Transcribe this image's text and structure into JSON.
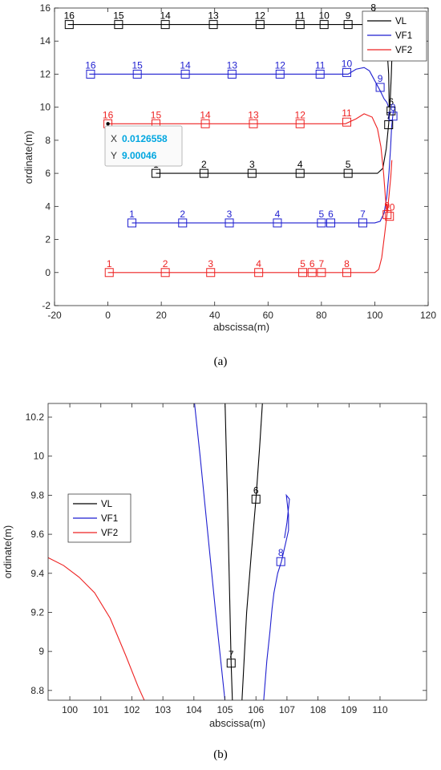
{
  "colors": {
    "VL": "#000000",
    "VF1": "#1f1fd0",
    "VF2": "#ee2222",
    "tooltip_value": "#00a6e0"
  },
  "chart_data": [
    {
      "id": "a",
      "type": "line",
      "caption": "(a)",
      "xlabel": "abscissa(m)",
      "ylabel": "ordinate(m)",
      "xlim": [
        -20,
        120
      ],
      "ylim": [
        -2,
        16
      ],
      "xticks": [
        -20,
        0,
        20,
        40,
        60,
        80,
        100,
        120
      ],
      "yticks": [
        -2,
        0,
        2,
        4,
        6,
        8,
        10,
        12,
        14,
        16
      ],
      "legend": {
        "placement": "top-right",
        "entries": [
          "VL",
          "VF1",
          "VF2"
        ]
      },
      "series": [
        {
          "name": "VL",
          "color_key": "VL",
          "paths": [
            [
              [
                -15,
                15
              ],
              [
                101,
                15
              ],
              [
                103,
                14.8
              ],
              [
                104.4,
                14
              ],
              [
                105.2,
                12
              ],
              [
                105.4,
                10
              ]
            ],
            [
              [
                18,
                6
              ],
              [
                101,
                6
              ],
              [
                103,
                6.3
              ],
              [
                104.3,
                7.5
              ],
              [
                105.2,
                9
              ],
              [
                105.6,
                9.8
              ],
              [
                106.2,
                12
              ],
              [
                106.6,
                14
              ],
              [
                106.9,
                15.6
              ]
            ]
          ],
          "markers": [
            {
              "label": "16",
              "x": -14.5,
              "y": 15
            },
            {
              "label": "15",
              "x": 4,
              "y": 15
            },
            {
              "label": "14",
              "x": 21.5,
              "y": 15
            },
            {
              "label": "13",
              "x": 39.5,
              "y": 15
            },
            {
              "label": "12",
              "x": 57,
              "y": 15
            },
            {
              "label": "11",
              "x": 72,
              "y": 15
            },
            {
              "label": "10",
              "x": 81,
              "y": 15
            },
            {
              "label": "9",
              "x": 90,
              "y": 15
            },
            {
              "label": "8",
              "x": 99.5,
              "y": 15.5
            },
            {
              "label": "7",
              "x": 105.2,
              "y": 8.94
            },
            {
              "label": "6",
              "x": 106.1,
              "y": 9.78
            },
            {
              "label": "1",
              "x": 18,
              "y": 6
            },
            {
              "label": "2",
              "x": 36,
              "y": 6
            },
            {
              "label": "3",
              "x": 54,
              "y": 6
            },
            {
              "label": "4",
              "x": 72,
              "y": 6
            },
            {
              "label": "5",
              "x": 90,
              "y": 6
            }
          ]
        },
        {
          "name": "VF1",
          "color_key": "VF1",
          "paths": [
            [
              [
                -7,
                12
              ],
              [
                90,
                12
              ],
              [
                93,
                12.3
              ],
              [
                96,
                12.4
              ],
              [
                98,
                12.2
              ],
              [
                100,
                11.6
              ],
              [
                102,
                11
              ],
              [
                103.5,
                10.5
              ],
              [
                104.5,
                10.3
              ],
              [
                105.2,
                10
              ]
            ],
            [
              [
                9,
                3
              ],
              [
                100,
                3
              ],
              [
                102,
                3.1
              ],
              [
                103.5,
                3.6
              ],
              [
                104.5,
                4.6
              ],
              [
                105.3,
                6
              ],
              [
                105.9,
                7.5
              ],
              [
                106.3,
                8.8
              ],
              [
                106.7,
                9.4
              ],
              [
                107,
                9.8
              ]
            ]
          ],
          "markers": [
            {
              "label": "16",
              "x": -6.5,
              "y": 12
            },
            {
              "label": "15",
              "x": 11,
              "y": 12
            },
            {
              "label": "14",
              "x": 29,
              "y": 12
            },
            {
              "label": "13",
              "x": 46.5,
              "y": 12
            },
            {
              "label": "12",
              "x": 64.5,
              "y": 12
            },
            {
              "label": "11",
              "x": 79.5,
              "y": 12
            },
            {
              "label": "10",
              "x": 89.5,
              "y": 12.1
            },
            {
              "label": "9",
              "x": 102,
              "y": 11.2
            },
            {
              "label": "8",
              "x": 106.8,
              "y": 9.46
            },
            {
              "label": "1",
              "x": 9,
              "y": 3
            },
            {
              "label": "2",
              "x": 28,
              "y": 3
            },
            {
              "label": "3",
              "x": 45.5,
              "y": 3
            },
            {
              "label": "4",
              "x": 63.5,
              "y": 3
            },
            {
              "label": "5",
              "x": 80,
              "y": 3
            },
            {
              "label": "6",
              "x": 83.5,
              "y": 3
            },
            {
              "label": "7",
              "x": 95.5,
              "y": 3
            }
          ]
        },
        {
          "name": "VF2",
          "color_key": "VF2",
          "paths": [
            [
              [
                0,
                9
              ],
              [
                89,
                9
              ],
              [
                93,
                9.3
              ],
              [
                96,
                9.6
              ],
              [
                99,
                9.4
              ],
              [
                101,
                8.7
              ],
              [
                102.3,
                7.6
              ],
              [
                103.3,
                6
              ],
              [
                104,
                4.5
              ],
              [
                104.6,
                3.6
              ]
            ],
            [
              [
                0,
                0
              ],
              [
                100,
                0
              ],
              [
                101.5,
                0.2
              ],
              [
                102.6,
                0.9
              ],
              [
                103.6,
                2.2
              ],
              [
                104.5,
                3.4
              ],
              [
                105.3,
                4.6
              ],
              [
                106,
                5.8
              ],
              [
                106.4,
                6.8
              ]
            ]
          ],
          "markers": [
            {
              "label": "16",
              "x": 0,
              "y": 9
            },
            {
              "label": "15",
              "x": 18,
              "y": 9
            },
            {
              "label": "14",
              "x": 36.5,
              "y": 9
            },
            {
              "label": "13",
              "x": 54.5,
              "y": 9
            },
            {
              "label": "12",
              "x": 72,
              "y": 9
            },
            {
              "label": "11",
              "x": 89.5,
              "y": 9.1
            },
            {
              "label": "10",
              "x": 105.5,
              "y": 3.4
            },
            {
              "label": "9",
              "x": 104.6,
              "y": 3.5
            },
            {
              "label": "1",
              "x": 0.5,
              "y": 0
            },
            {
              "label": "2",
              "x": 21.5,
              "y": 0
            },
            {
              "label": "3",
              "x": 38.5,
              "y": 0
            },
            {
              "label": "4",
              "x": 56.5,
              "y": 0
            },
            {
              "label": "5",
              "x": 73,
              "y": 0
            },
            {
              "label": "6",
              "x": 76.5,
              "y": 0
            },
            {
              "label": "7",
              "x": 80,
              "y": 0
            },
            {
              "label": "8",
              "x": 89.5,
              "y": 0
            }
          ]
        }
      ],
      "annotations": [
        {
          "type": "datatip",
          "x": 0.0126558,
          "y": 9.00046,
          "x_key": "X",
          "x_text": "0.0126558",
          "y_key": "Y",
          "y_text": "9.00046"
        }
      ]
    },
    {
      "id": "b",
      "type": "line",
      "caption": "(b)",
      "xlabel": "abscissa(m)",
      "ylabel": "ordinate(m)",
      "xlim": [
        99.3,
        111.5
      ],
      "ylim": [
        8.75,
        10.27
      ],
      "xticks": [
        100,
        101,
        102,
        103,
        104,
        105,
        106,
        107,
        108,
        109,
        110
      ],
      "yticks": [
        8.8,
        9,
        9.2,
        9.4,
        9.6,
        9.8,
        10,
        10.2
      ],
      "ytick_labels": [
        "8.8",
        "9",
        "9.2",
        "9.4",
        "9.6",
        "9.8",
        "10",
        "10.2"
      ],
      "legend": {
        "placement": "top-left",
        "entries": [
          "VL",
          "VF1",
          "VF2"
        ]
      },
      "series": [
        {
          "name": "VL",
          "color_key": "VL",
          "paths": [
            [
              [
                105.0,
                10.3
              ],
              [
                105.08,
                9.8
              ],
              [
                105.15,
                9.3
              ],
              [
                105.2,
                8.94
              ],
              [
                105.24,
                8.75
              ]
            ],
            [
              [
                105.55,
                8.75
              ],
              [
                105.7,
                9.2
              ],
              [
                105.85,
                9.5
              ],
              [
                106.0,
                9.78
              ],
              [
                106.12,
                10.05
              ],
              [
                106.22,
                10.3
              ]
            ]
          ],
          "markers": [
            {
              "label": "7",
              "x": 105.2,
              "y": 8.94
            },
            {
              "label": "6",
              "x": 106.0,
              "y": 9.78
            }
          ]
        },
        {
          "name": "VF1",
          "color_key": "VF1",
          "paths": [
            [
              [
                104.0,
                10.3
              ],
              [
                104.2,
                10.0
              ],
              [
                104.45,
                9.6
              ],
              [
                104.7,
                9.2
              ],
              [
                104.9,
                8.9
              ],
              [
                105.0,
                8.75
              ]
            ],
            [
              [
                106.25,
                8.75
              ],
              [
                106.35,
                8.95
              ],
              [
                106.45,
                9.1
              ],
              [
                106.52,
                9.22
              ],
              [
                106.58,
                9.3
              ],
              [
                106.7,
                9.4
              ],
              [
                106.82,
                9.46
              ],
              [
                106.95,
                9.55
              ],
              [
                107.05,
                9.62
              ],
              [
                107.05,
                9.7
              ],
              [
                106.98,
                9.8
              ],
              [
                107.08,
                9.78
              ],
              [
                107.0,
                9.66
              ],
              [
                106.92,
                9.58
              ]
            ]
          ],
          "markers": [
            {
              "label": "8",
              "x": 106.8,
              "y": 9.46
            }
          ]
        },
        {
          "name": "VF2",
          "color_key": "VF2",
          "paths": [
            [
              [
                99.3,
                9.48
              ],
              [
                99.8,
                9.44
              ],
              [
                100.3,
                9.38
              ],
              [
                100.8,
                9.3
              ],
              [
                101.3,
                9.17
              ],
              [
                101.8,
                8.98
              ],
              [
                102.2,
                8.82
              ],
              [
                102.4,
                8.75
              ]
            ]
          ],
          "markers": []
        }
      ],
      "annotations": []
    }
  ]
}
